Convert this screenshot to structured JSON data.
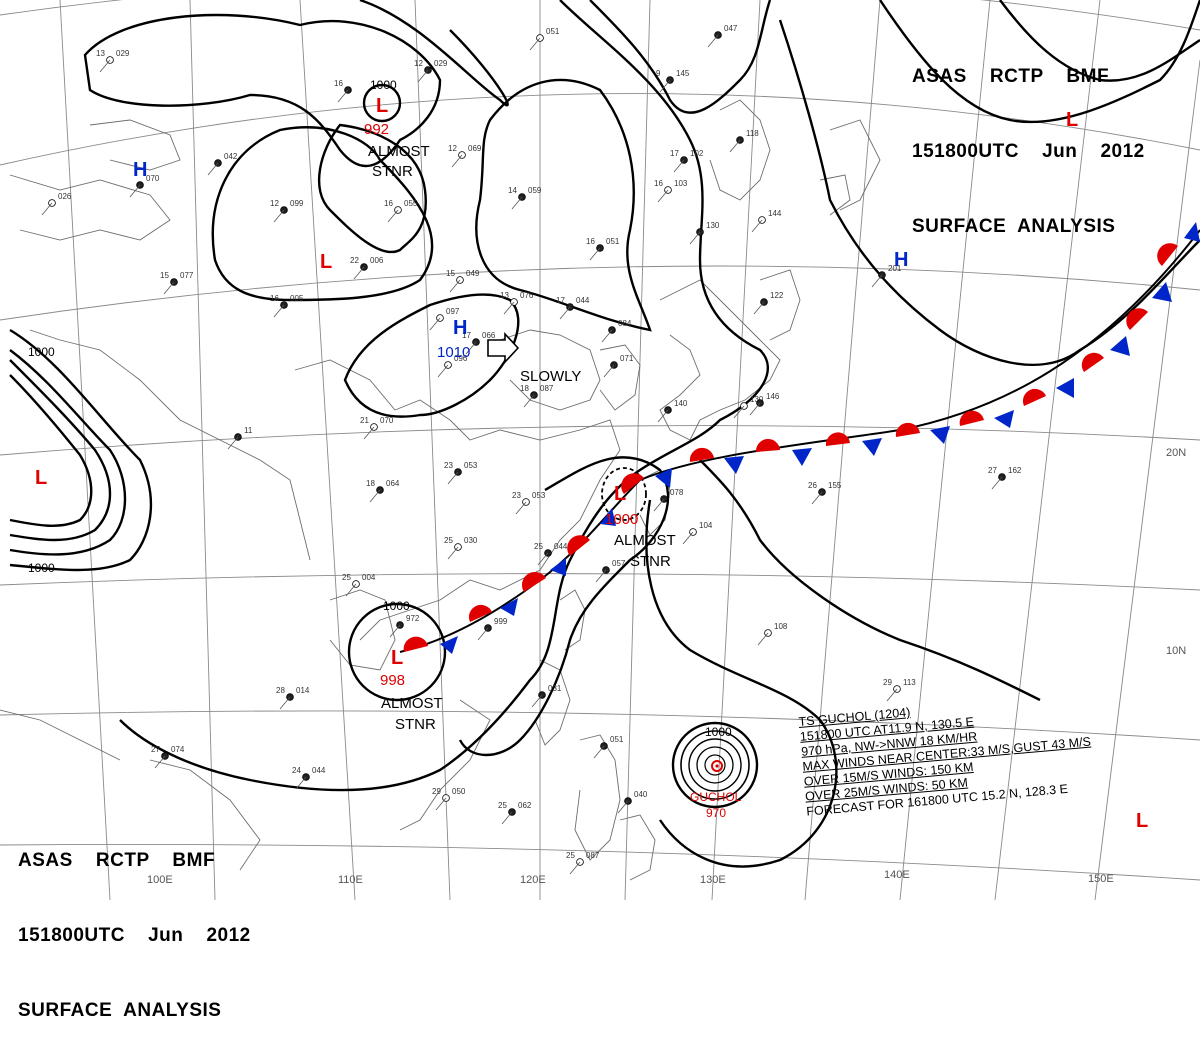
{
  "header": {
    "line1": "ASAS    RCTP    BMF",
    "line2": "151800UTC    Jun    2012",
    "line3": "SURFACE  ANALYSIS"
  },
  "lon_labels": [
    "110E",
    "120E",
    "130E",
    "140E",
    "150E",
    "100E"
  ],
  "lat_labels": [
    "20N",
    "10N"
  ],
  "isobar_values": [
    "1000",
    "1000",
    "1000",
    "1000",
    "1000",
    "1000"
  ],
  "systems": {
    "low_north": {
      "symbol": "L",
      "pressure": "992",
      "motion": "ALMOST",
      "motion2": "STNR",
      "color": "#e00000"
    },
    "high_north": {
      "symbol": "H",
      "pressure": "1010",
      "motion": "SLOWLY",
      "color": "#0026c9"
    },
    "low_west": {
      "symbol": "L",
      "color": "#e00000"
    },
    "high_west": {
      "symbol": "H",
      "color": "#0026c9"
    },
    "low_mid": {
      "symbol": "L",
      "color": "#e00000"
    },
    "low_taiwan": {
      "symbol": "L",
      "pressure": "1000",
      "motion": "ALMOST",
      "motion2": "STNR",
      "color": "#e00000"
    },
    "low_south": {
      "symbol": "L",
      "pressure": "998",
      "motion": "ALMOST",
      "motion2": "STNR",
      "color": "#e00000"
    },
    "high_east": {
      "symbol": "H",
      "color": "#0026c9"
    },
    "low_ne": {
      "symbol": "L",
      "color": "#e00000"
    },
    "low_se": {
      "symbol": "L",
      "color": "#e00000"
    },
    "typhoon": {
      "name": "GUCHOL",
      "pressure": "970",
      "color": "#e00000"
    }
  },
  "typhoon_info": {
    "line1": "TS  GUCHOL  (1204)",
    "line2": "151800 UTC  AT11.9 N, 130.5 E",
    "line3": "970 hPa, NW->NNW  18 KM/HR",
    "line4": "MAX WINDS NEAR CENTER:33 M/S,GUST 43 M/S",
    "line5": "OVER 15M/S WINDS: 150 KM",
    "line6": "OVER 25M/S WINDS: 50 KM",
    "line7": "FORECAST FOR 161800 UTC 15.2 N, 128.3 E"
  },
  "stations": [
    {
      "t": "13",
      "p": "029"
    },
    {
      "t": "12",
      "p": "029"
    },
    {
      "t": "16",
      "p": ""
    },
    {
      "t": "",
      "p": "051"
    },
    {
      "t": "9",
      "p": "145"
    },
    {
      "t": "",
      "p": "047"
    },
    {
      "t": "12",
      "p": "069"
    },
    {
      "t": "",
      "p": "042"
    },
    {
      "t": "12",
      "p": "099"
    },
    {
      "t": "16",
      "p": "055"
    },
    {
      "t": "14",
      "p": "059"
    },
    {
      "t": "",
      "p": "070"
    },
    {
      "t": "",
      "p": "026"
    },
    {
      "t": "16",
      "p": "051"
    },
    {
      "t": "17",
      "p": "102"
    },
    {
      "t": "16",
      "p": "103"
    },
    {
      "t": "",
      "p": "118"
    },
    {
      "t": "22",
      "p": "006"
    },
    {
      "t": "15",
      "p": "049"
    },
    {
      "t": "15",
      "p": "077"
    },
    {
      "t": "16",
      "p": "005"
    },
    {
      "t": "13",
      "p": "076"
    },
    {
      "t": "17",
      "p": "044"
    },
    {
      "t": "",
      "p": "130"
    },
    {
      "t": "",
      "p": "144"
    },
    {
      "t": "",
      "p": "122"
    },
    {
      "t": "",
      "p": "201"
    },
    {
      "t": "",
      "p": "097"
    },
    {
      "t": "17",
      "p": "066"
    },
    {
      "t": "",
      "p": "084"
    },
    {
      "t": "",
      "p": "096"
    },
    {
      "t": "",
      "p": "071"
    },
    {
      "t": "18",
      "p": "087"
    },
    {
      "t": "",
      "p": "130"
    },
    {
      "t": "",
      "p": "146"
    },
    {
      "t": "",
      "p": "140"
    },
    {
      "t": "21",
      "p": "070"
    },
    {
      "t": "",
      "p": "11"
    },
    {
      "t": "23",
      "p": "053"
    },
    {
      "t": "23",
      "p": "053"
    },
    {
      "t": "18",
      "p": "064"
    },
    {
      "t": "",
      "p": "078"
    },
    {
      "t": "",
      "p": "104"
    },
    {
      "t": "26",
      "p": "155"
    },
    {
      "t": "27",
      "p": "162"
    },
    {
      "t": "25",
      "p": "030"
    },
    {
      "t": "25",
      "p": "044"
    },
    {
      "t": "",
      "p": "057"
    },
    {
      "t": "25",
      "p": "004"
    },
    {
      "t": "",
      "p": "972"
    },
    {
      "t": "",
      "p": "999"
    },
    {
      "t": "",
      "p": "108"
    },
    {
      "t": "28",
      "p": "014"
    },
    {
      "t": "",
      "p": "031"
    },
    {
      "t": "29",
      "p": "113"
    },
    {
      "t": "27",
      "p": "074"
    },
    {
      "t": "24",
      "p": "044"
    },
    {
      "t": "29",
      "p": "050"
    },
    {
      "t": "25",
      "p": "062"
    },
    {
      "t": "",
      "p": "040"
    },
    {
      "t": "25",
      "p": "087"
    },
    {
      "t": "",
      "p": "051"
    }
  ]
}
